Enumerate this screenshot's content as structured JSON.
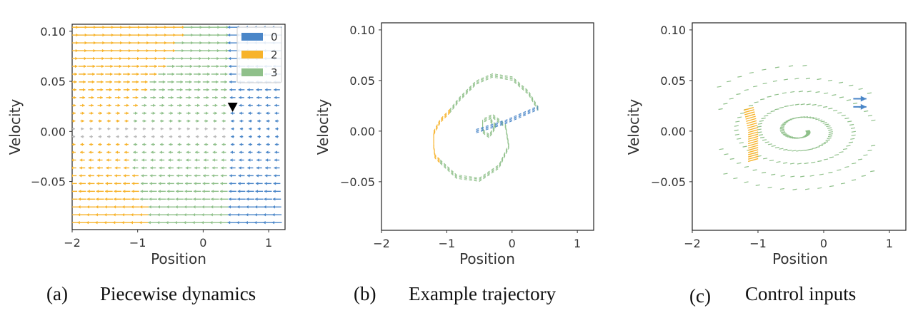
{
  "colors": {
    "mode0": "#4a86c8",
    "mode2": "#f7b32b",
    "mode3": "#8fc08a",
    "marker": "#000000"
  },
  "chart_data": [
    {
      "type": "quiver",
      "caption_letter": "(a)",
      "caption": "Piecewise dynamics",
      "xlabel": "Position",
      "ylabel": "Velocity",
      "xlim": [
        -2.0,
        1.25
      ],
      "ylim": [
        -0.098,
        0.107
      ],
      "xticks": [
        "−2",
        "−1",
        "0",
        "1"
      ],
      "yticks": [
        "−0.05",
        "0.00",
        "0.05",
        "0.10"
      ],
      "ytick_values": [
        -0.05,
        0.0,
        0.05,
        0.1
      ],
      "legend": {
        "placement": "top-right",
        "entries": [
          "0",
          "2",
          "3"
        ],
        "series": [
          "mode0",
          "mode2",
          "mode3"
        ]
      },
      "marker": {
        "shape": "triangle-down",
        "x": 0.45,
        "y": 0.023
      },
      "mode_boundaries": {
        "orange_green_left": -1.15,
        "orange_green_right": 0.2,
        "blue_from_x": 0.35
      }
    },
    {
      "type": "trajectory",
      "caption_letter": "(b)",
      "caption": "Example trajectory",
      "xlabel": "Position",
      "ylabel": "Velocity",
      "xlim": [
        -2.0,
        1.25
      ],
      "ylim": [
        -0.098,
        0.107
      ],
      "xticks": [
        "−2",
        "−1",
        "0",
        "1"
      ],
      "yticks": [
        "−0.05",
        "0.00",
        "0.05",
        "0.10"
      ],
      "ytick_values": [
        -0.05,
        0.0,
        0.05,
        0.1
      ],
      "segments": [
        {
          "mode": "mode3",
          "points": [
            [
              0.4,
              0.022
            ],
            [
              0.25,
              0.038
            ],
            [
              0.0,
              0.052
            ],
            [
              -0.3,
              0.055
            ],
            [
              -0.55,
              0.048
            ],
            [
              -0.8,
              0.032
            ],
            [
              -0.95,
              0.02
            ]
          ]
        },
        {
          "mode": "mode2",
          "points": [
            [
              -0.95,
              0.02
            ],
            [
              -1.1,
              0.01
            ],
            [
              -1.2,
              -0.002
            ],
            [
              -1.2,
              -0.015
            ],
            [
              -1.18,
              -0.025
            ],
            [
              -1.1,
              -0.03
            ]
          ]
        },
        {
          "mode": "mode3",
          "points": [
            [
              -1.1,
              -0.03
            ],
            [
              -0.85,
              -0.045
            ],
            [
              -0.5,
              -0.048
            ],
            [
              -0.2,
              -0.035
            ],
            [
              -0.05,
              -0.015
            ],
            [
              -0.1,
              0.005
            ],
            [
              -0.3,
              0.015
            ],
            [
              -0.45,
              0.01
            ],
            [
              -0.45,
              0.0
            ],
            [
              -0.35,
              -0.005
            ],
            [
              -0.25,
              0.005
            ],
            [
              -0.35,
              0.012
            ]
          ]
        },
        {
          "mode": "mode0",
          "points": [
            [
              -0.55,
              0.0
            ],
            [
              -0.1,
              0.009
            ],
            [
              0.4,
              0.023
            ]
          ]
        }
      ]
    },
    {
      "type": "control_inputs",
      "caption_letter": "(c)",
      "caption": "Control inputs",
      "xlabel": "Position",
      "ylabel": "Velocity",
      "xlim": [
        -2.0,
        1.25
      ],
      "ylim": [
        -0.098,
        0.107
      ],
      "xticks": [
        "−2",
        "−1",
        "0",
        "1"
      ],
      "yticks": [
        "−0.05",
        "0.00",
        "0.05",
        "0.10"
      ],
      "ytick_values": [
        -0.05,
        0.0,
        0.05,
        0.1
      ],
      "arrows": [
        {
          "mode": "mode0",
          "x": 0.45,
          "y": 0.032,
          "dx": 0.2,
          "dy": 0.0
        },
        {
          "mode": "mode0",
          "x": 0.45,
          "y": 0.024,
          "dx": 0.2,
          "dy": 0.0
        }
      ],
      "orange_band": {
        "x": -1.15,
        "y_from": -0.03,
        "y_to": 0.022
      },
      "green_spiral": {
        "center_x": -0.35,
        "center_y": 0.0
      }
    }
  ]
}
